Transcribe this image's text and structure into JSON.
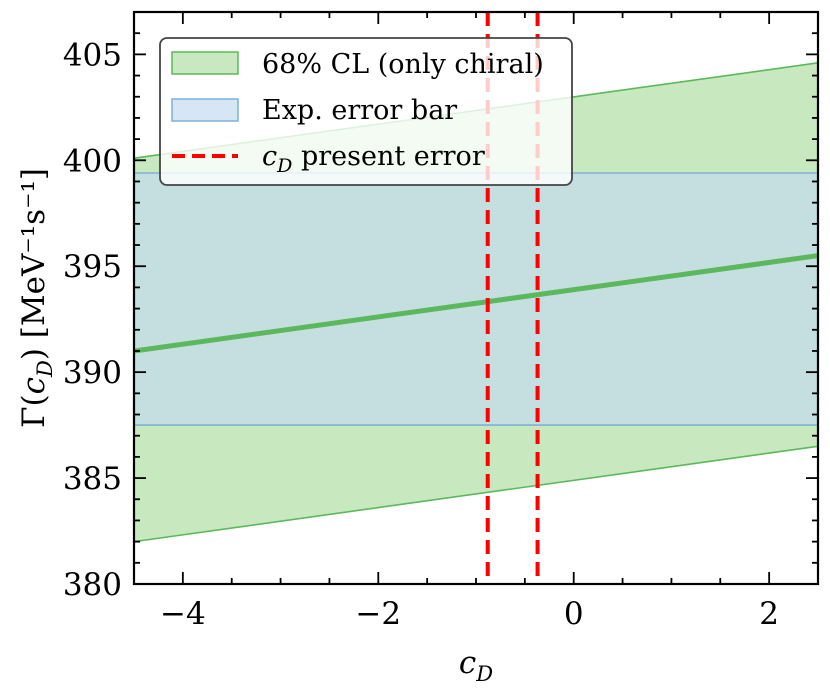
{
  "chart_data": {
    "type": "line",
    "xlabel": "c_D",
    "ylabel": "Γ(c_D) [MeV⁻¹s⁻¹]",
    "xlim": [
      -4.5,
      2.5
    ],
    "ylim": [
      380,
      407
    ],
    "x_ticks": [
      -4,
      -2,
      0,
      2
    ],
    "x_tick_labels": [
      "−4",
      "−2",
      "0",
      "2"
    ],
    "y_ticks": [
      380,
      385,
      390,
      395,
      400,
      405
    ],
    "y_tick_labels": [
      "380",
      "385",
      "390",
      "395",
      "400",
      "405"
    ],
    "central_line": {
      "x": [
        -4.5,
        2.5
      ],
      "y": [
        391.0,
        395.5
      ],
      "color": "#5cb85c"
    },
    "cl_band": {
      "name": "68% CL (only chiral)",
      "x": [
        -4.5,
        2.5
      ],
      "lower": [
        382.0,
        386.5
      ],
      "upper": [
        400.1,
        404.6
      ],
      "fill": "#c8e8c0",
      "edge": "#5cb85c"
    },
    "exp_band": {
      "name": "Exp. error bar",
      "y_low": 387.5,
      "y_high": 399.4,
      "fill": "#c5dfe0",
      "legend_fill": "#d6e6f5",
      "edge": "#7fb0d8"
    },
    "cd_lines": {
      "name": "c_D present error",
      "x": [
        -0.88,
        -0.37
      ],
      "color": "#ff0000"
    },
    "legend": {
      "position": "upper-left",
      "entries": [
        {
          "label": "68% CL (only chiral)"
        },
        {
          "label": "Exp. error bar"
        },
        {
          "label": "present error",
          "math": "c_D"
        }
      ]
    },
    "grid": false
  }
}
